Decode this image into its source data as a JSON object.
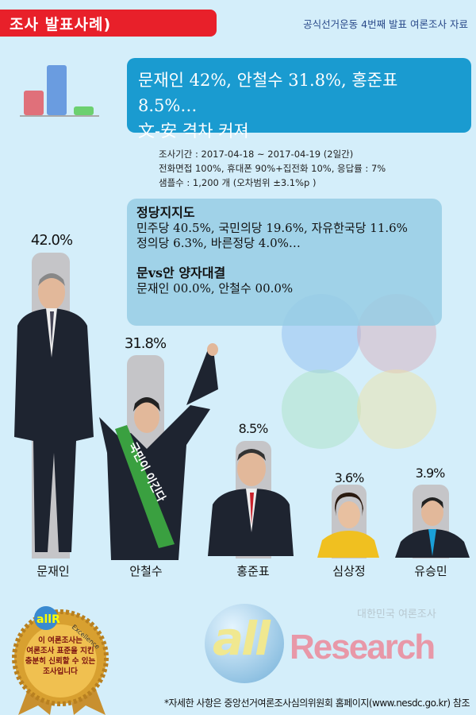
{
  "header": {
    "tag": "조사 발표사례)",
    "source": "공식선거운동 4번째 발표 여론조사 자료"
  },
  "headline": {
    "line1": "문재인 42%, 안철수 31.8%, 홍준표 8.5%…",
    "line2": "文-安 격차 커져"
  },
  "meta": {
    "period": "조사기간 : 2017-04-18 ~  2017-04-19 (2일간)",
    "method": "전화면접 100%, 휴대폰 90%+집전화 10%, 응답률 : 7%",
    "sample": "샘플수 : 1,200 개 (오차범위 ±3.1%p )"
  },
  "party": {
    "title": "정당지지도",
    "line1": "민주당 40.5%, 국민의당 19.6%, 자유한국당 11.6%",
    "line2": "정의당 6.3%, 바른정당 4.0%…",
    "vs_title": "문vs안 양자대결",
    "vs_line": "문재인 00.0%, 안철수 00.0%"
  },
  "candidates": [
    {
      "name": "문재인",
      "pct": "42.0%",
      "value": 42.0,
      "color": "#1a3c8a"
    },
    {
      "name": "안철수",
      "pct": "31.8%",
      "value": 31.8,
      "color": "#2e9a3a"
    },
    {
      "name": "홍준표",
      "pct": "8.5%",
      "value": 8.5,
      "color": "#d0202a"
    },
    {
      "name": "심상정",
      "pct": "3.6%",
      "value": 3.6,
      "color": "#f0c020"
    },
    {
      "name": "유승민",
      "pct": "3.9%",
      "value": 3.9,
      "color": "#1aa0d8"
    }
  ],
  "sash": "국민이 이긴다",
  "badge": {
    "logo": "allR",
    "ribbon": "Excellence",
    "text": [
      "이 여론조사는",
      "여론조사 표준을 지킨",
      "충분히 신뢰할 수 있는",
      "조사입니다"
    ]
  },
  "brand": {
    "logo_all": "all",
    "logo_research": "Research",
    "tagline": "대한민국 여론조사"
  },
  "footer": "*자세한 사항은 중앙선거여론조사심의위원회 홈페이지(www.nesdc.go.kr) 참조"
}
